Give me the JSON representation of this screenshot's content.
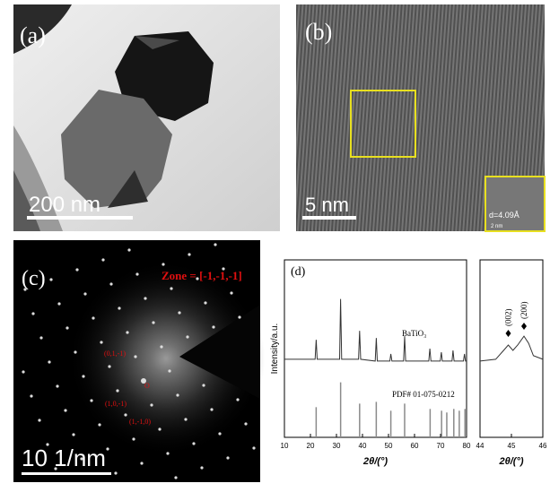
{
  "panels": {
    "a": {
      "label": "(a)",
      "scale_bar": "200 nm"
    },
    "b": {
      "label": "(b)",
      "scale_bar": "5 nm",
      "inset_text": "d=4.09Å",
      "inset_scale": "2 nm"
    },
    "c": {
      "label": "(c)",
      "zone": "Zone = [-1,-1,-1]",
      "spots": [
        "(0,1,-1)",
        "O",
        "(1,0,-1)",
        "(1,-1,0)"
      ],
      "scale_bar": "10 1/nm"
    },
    "d": {
      "label": "(d)"
    }
  },
  "chart_data": [
    {
      "type": "line",
      "y_label": "Intensity/a.u.",
      "x_label": "2θ/(°)",
      "xlim": [
        10,
        80
      ],
      "xticks": [
        10,
        20,
        30,
        40,
        50,
        60,
        70,
        80
      ],
      "ylim": [
        0,
        100
      ],
      "series": [
        {
          "name": "BaTiO₃",
          "color": "#333333",
          "x": [
            10,
            21.8,
            22.2,
            22.6,
            31.2,
            31.6,
            32.0,
            38.5,
            38.9,
            39.3,
            44.9,
            45.3,
            45.7,
            50.5,
            50.9,
            51.3,
            55.8,
            56.2,
            56.6,
            65.5,
            65.9,
            66.3,
            69.9,
            70.3,
            70.7,
            74.4,
            74.8,
            75.2,
            78.8,
            79.2,
            79.6,
            80
          ],
          "values": [
            44,
            44,
            55,
            44,
            44,
            78,
            44,
            44,
            60,
            44,
            43,
            56,
            43,
            43,
            47,
            43,
            43,
            57,
            43,
            43,
            50,
            43,
            43,
            48,
            43,
            43,
            49,
            43,
            43,
            47,
            43,
            43
          ]
        },
        {
          "name": "PDF# 01-075-0212",
          "style": "stick",
          "color": "#8a8a8a",
          "x": [
            22.2,
            31.6,
            38.9,
            45.3,
            50.9,
            56.2,
            66.0,
            70.4,
            72.4,
            75.1,
            77.2,
            79.4
          ],
          "values": [
            17,
            31,
            19,
            20,
            15,
            19,
            16,
            15,
            14,
            16,
            15,
            16
          ]
        }
      ]
    },
    {
      "type": "line",
      "x_label": "2θ/(°)",
      "xlim": [
        44,
        46
      ],
      "xticks": [
        44,
        45,
        46
      ],
      "ylim": [
        0,
        100
      ],
      "series": [
        {
          "color": "#333333",
          "x": [
            44,
            44.5,
            44.75,
            44.9,
            45.05,
            45.2,
            45.4,
            45.55,
            45.7,
            46
          ],
          "values": [
            43,
            44,
            49,
            52,
            49,
            52,
            57,
            53,
            46,
            44
          ]
        }
      ],
      "annotations": [
        {
          "text": "(002)",
          "x": 44.9
        },
        {
          "text": "(200)",
          "x": 45.4
        }
      ]
    }
  ]
}
